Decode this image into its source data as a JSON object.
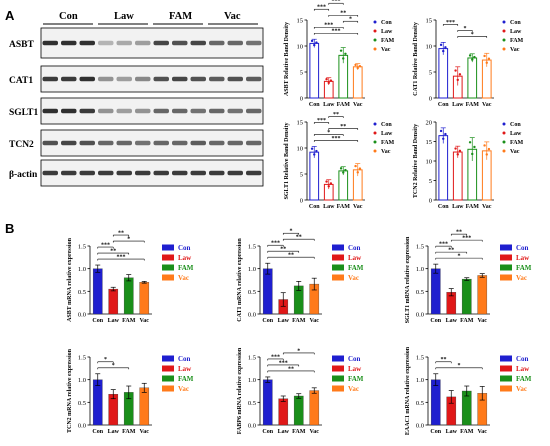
{
  "colors": {
    "Con": "#1f1fcf",
    "Law": "#e01818",
    "FAM": "#1a8f1a",
    "Vac": "#ff7a1a"
  },
  "panel_labels": [
    "A",
    "B"
  ],
  "blot": {
    "group_labels": [
      "Con",
      "Law",
      "FAM",
      "Vac"
    ],
    "rows": [
      {
        "label": "ASBT",
        "band_intensity": [
          0.85,
          0.85,
          0.85,
          0.25,
          0.3,
          0.35,
          0.75,
          0.7,
          0.75,
          0.6,
          0.6,
          0.55
        ]
      },
      {
        "label": "CAT1",
        "band_intensity": [
          0.8,
          0.8,
          0.85,
          0.4,
          0.35,
          0.45,
          0.7,
          0.75,
          0.7,
          0.65,
          0.7,
          0.65
        ]
      },
      {
        "label": "SGLT1",
        "band_intensity": [
          0.85,
          0.85,
          0.8,
          0.4,
          0.35,
          0.4,
          0.6,
          0.6,
          0.55,
          0.6,
          0.55,
          0.6
        ]
      },
      {
        "label": "TCN2",
        "band_intensity": [
          0.7,
          0.75,
          0.7,
          0.6,
          0.6,
          0.55,
          0.6,
          0.6,
          0.65,
          0.6,
          0.6,
          0.6
        ]
      },
      {
        "label": "β-actin",
        "band_intensity": [
          0.8,
          0.8,
          0.8,
          0.8,
          0.8,
          0.8,
          0.8,
          0.8,
          0.8,
          0.8,
          0.8,
          0.8
        ]
      }
    ]
  },
  "chart_data": [
    {
      "id": "a1",
      "panel": "A",
      "type": "bar",
      "style": "outline",
      "categories": [
        "Con",
        "Law",
        "FAM",
        "Vac"
      ],
      "values": [
        10.5,
        3.2,
        8.2,
        6.0
      ],
      "errors": [
        0.8,
        0.7,
        1.5,
        0.6
      ],
      "ylabel": "ASBT Relative Band Density",
      "ylim": [
        0,
        15
      ],
      "yticks": [
        0,
        5,
        10,
        15
      ],
      "legend": [
        "Con",
        "Law",
        "FAM",
        "Vac"
      ],
      "legend_position": "right",
      "significance": [
        {
          "a": 0,
          "b": 3,
          "label": "***"
        },
        {
          "a": 0,
          "b": 2,
          "label": "***"
        },
        {
          "a": 2,
          "b": 3,
          "label": "*"
        },
        {
          "a": 1,
          "b": 3,
          "label": "**"
        },
        {
          "a": 0,
          "b": 1,
          "label": "***"
        },
        {
          "a": 1,
          "b": 2,
          "label": "***"
        }
      ]
    },
    {
      "id": "a2",
      "panel": "A",
      "type": "bar",
      "style": "outline",
      "categories": [
        "Con",
        "Law",
        "FAM",
        "Vac"
      ],
      "values": [
        9.5,
        4.2,
        7.7,
        7.3
      ],
      "errors": [
        1.2,
        1.8,
        0.8,
        1.3
      ],
      "ylabel": "CAT1 Relative Band Density",
      "ylim": [
        0,
        15
      ],
      "yticks": [
        0,
        5,
        10,
        15
      ],
      "legend": [
        "Con",
        "Law",
        "FAM",
        "Vac"
      ],
      "legend_position": "right",
      "significance": [
        {
          "a": 1,
          "b": 3,
          "label": "*"
        },
        {
          "a": 1,
          "b": 2,
          "label": "*"
        },
        {
          "a": 0,
          "b": 1,
          "label": "***"
        }
      ]
    },
    {
      "id": "a3",
      "panel": "A",
      "type": "bar",
      "style": "outline",
      "categories": [
        "Con",
        "Law",
        "FAM",
        "Vac"
      ],
      "values": [
        9.2,
        3.0,
        5.6,
        5.8
      ],
      "errors": [
        1.1,
        0.9,
        0.8,
        1.2
      ],
      "ylabel": "SGLT1 Relative Band Density",
      "ylim": [
        0,
        15
      ],
      "yticks": [
        0,
        5,
        10,
        15
      ],
      "legend": [
        "Con",
        "Law",
        "FAM",
        "Vac"
      ],
      "legend_position": "right",
      "significance": [
        {
          "a": 0,
          "b": 3,
          "label": "***"
        },
        {
          "a": 0,
          "b": 2,
          "label": "*"
        },
        {
          "a": 1,
          "b": 3,
          "label": "**"
        },
        {
          "a": 0,
          "b": 1,
          "label": "***"
        },
        {
          "a": 1,
          "b": 2,
          "label": "**"
        }
      ]
    },
    {
      "id": "a4",
      "panel": "A",
      "type": "bar",
      "style": "outline",
      "categories": [
        "Con",
        "Law",
        "FAM",
        "Vac"
      ],
      "values": [
        16.5,
        12.3,
        13.0,
        12.6
      ],
      "errors": [
        2.0,
        1.5,
        3.0,
        2.3
      ],
      "ylabel": "TCN2 Relative Band Density",
      "ylim": [
        0,
        20
      ],
      "yticks": [
        0,
        5,
        10,
        15,
        20
      ],
      "legend": [
        "Con",
        "Law",
        "FAM",
        "Vac"
      ],
      "legend_position": "right",
      "significance": []
    },
    {
      "id": "b1",
      "panel": "B",
      "type": "bar",
      "style": "filled",
      "categories": [
        "Con",
        "Law",
        "FAM",
        "Vac"
      ],
      "values": [
        1.0,
        0.55,
        0.8,
        0.7
      ],
      "errors": [
        0.08,
        0.04,
        0.07,
        0.02
      ],
      "ylabel": "ASBT mRNA relative expression",
      "ylim": [
        0,
        1.5
      ],
      "yticks": [
        0.0,
        0.5,
        1.0,
        1.5
      ],
      "legend": [
        "Con",
        "Law",
        "FAM",
        "Vac"
      ],
      "legend_position": "right",
      "significance": [
        {
          "a": 0,
          "b": 3,
          "label": "***"
        },
        {
          "a": 0,
          "b": 2,
          "label": "**"
        },
        {
          "a": 0,
          "b": 1,
          "label": "***"
        },
        {
          "a": 1,
          "b": 3,
          "label": "*"
        },
        {
          "a": 1,
          "b": 2,
          "label": "**"
        }
      ]
    },
    {
      "id": "b2",
      "panel": "B",
      "type": "bar",
      "style": "filled",
      "categories": [
        "Con",
        "Law",
        "FAM",
        "Vac"
      ],
      "values": [
        1.0,
        0.32,
        0.62,
        0.66
      ],
      "errors": [
        0.12,
        0.15,
        0.1,
        0.13
      ],
      "ylabel": "CAT1 mRNA relative expression",
      "ylim": [
        0,
        1.5
      ],
      "yticks": [
        0.0,
        0.5,
        1.0,
        1.5
      ],
      "legend": [
        "Con",
        "Law",
        "FAM",
        "Vac"
      ],
      "legend_position": "right",
      "significance": [
        {
          "a": 0,
          "b": 3,
          "label": "**"
        },
        {
          "a": 0,
          "b": 2,
          "label": "**"
        },
        {
          "a": 0,
          "b": 1,
          "label": "***"
        },
        {
          "a": 1,
          "b": 3,
          "label": "**"
        },
        {
          "a": 1,
          "b": 2,
          "label": "*"
        }
      ]
    },
    {
      "id": "b3",
      "panel": "B",
      "type": "bar",
      "style": "filled",
      "categories": [
        "Con",
        "Law",
        "FAM",
        "Vac"
      ],
      "values": [
        1.0,
        0.48,
        0.77,
        0.85
      ],
      "errors": [
        0.1,
        0.08,
        0.03,
        0.04
      ],
      "ylabel": "SGLT1 mRNA relative expression",
      "ylim": [
        0,
        1.5
      ],
      "yticks": [
        0.0,
        0.5,
        1.0,
        1.5
      ],
      "legend": [
        "Con",
        "Law",
        "FAM",
        "Vac"
      ],
      "legend_position": "right",
      "significance": [
        {
          "a": 0,
          "b": 3,
          "label": "*"
        },
        {
          "a": 0,
          "b": 2,
          "label": "**"
        },
        {
          "a": 0,
          "b": 1,
          "label": "***"
        },
        {
          "a": 1,
          "b": 3,
          "label": "***"
        },
        {
          "a": 1,
          "b": 2,
          "label": "**"
        }
      ]
    },
    {
      "id": "b4",
      "panel": "B",
      "type": "bar",
      "style": "filled",
      "categories": [
        "Con",
        "Law",
        "FAM",
        "Vac"
      ],
      "values": [
        1.0,
        0.68,
        0.72,
        0.82
      ],
      "errors": [
        0.13,
        0.1,
        0.14,
        0.1
      ],
      "ylabel": "TCN2 mRNA relative expression",
      "ylim": [
        0,
        1.5
      ],
      "yticks": [
        0.0,
        0.5,
        1.0,
        1.5
      ],
      "legend": [
        "Con",
        "Law",
        "FAM",
        "Vac"
      ],
      "legend_position": "right",
      "significance": [
        {
          "a": 0,
          "b": 2,
          "label": "*"
        },
        {
          "a": 0,
          "b": 1,
          "label": "*"
        }
      ]
    },
    {
      "id": "b5",
      "panel": "B",
      "type": "bar",
      "style": "filled",
      "categories": [
        "Con",
        "Law",
        "FAM",
        "Vac"
      ],
      "values": [
        1.0,
        0.58,
        0.64,
        0.76
      ],
      "errors": [
        0.06,
        0.06,
        0.05,
        0.06
      ],
      "ylabel": "FABP6 mRNA relative expression",
      "ylim": [
        0,
        1.5
      ],
      "yticks": [
        0.0,
        0.5,
        1.0,
        1.5
      ],
      "legend": [
        "Con",
        "Law",
        "FAM",
        "Vac"
      ],
      "legend_position": "right",
      "significance": [
        {
          "a": 0,
          "b": 3,
          "label": "**"
        },
        {
          "a": 0,
          "b": 2,
          "label": "***"
        },
        {
          "a": 0,
          "b": 1,
          "label": "***"
        },
        {
          "a": 1,
          "b": 3,
          "label": "*"
        }
      ]
    },
    {
      "id": "b6",
      "panel": "B",
      "type": "bar",
      "style": "filled",
      "categories": [
        "Con",
        "Law",
        "FAM",
        "Vac"
      ],
      "values": [
        1.0,
        0.62,
        0.75,
        0.7
      ],
      "errors": [
        0.13,
        0.14,
        0.11,
        0.15
      ],
      "ylabel": "EAAC1 mRNA relative expression",
      "ylim": [
        0,
        1.5
      ],
      "yticks": [
        0.0,
        0.5,
        1.0,
        1.5
      ],
      "legend": [
        "Con",
        "Law",
        "FAM",
        "Vac"
      ],
      "legend_position": "right",
      "significance": [
        {
          "a": 0,
          "b": 3,
          "label": "*"
        },
        {
          "a": 0,
          "b": 1,
          "label": "**"
        }
      ]
    }
  ]
}
